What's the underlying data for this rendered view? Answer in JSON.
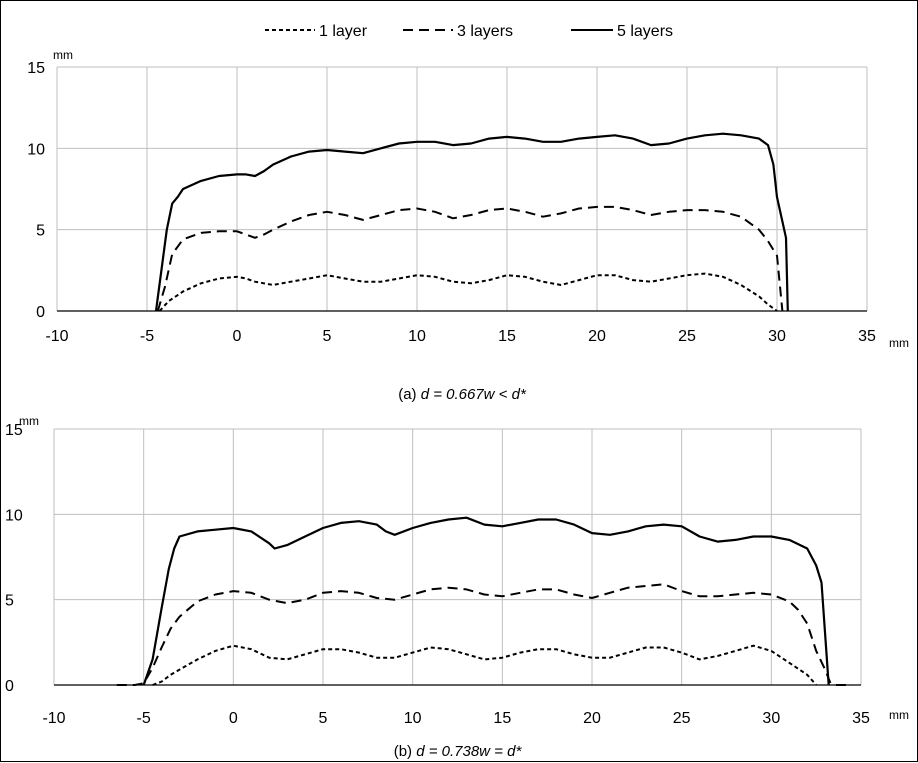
{
  "legend": [
    {
      "label": "1 layer",
      "dash": "4 3"
    },
    {
      "label": "3 layers",
      "dash": "10 6"
    },
    {
      "label": "5 layers",
      "dash": ""
    }
  ],
  "chart_data": [
    {
      "type": "line",
      "caption": {
        "prefix": "(a) ",
        "italic": "d = 0.667w < d*"
      },
      "xlim": [
        -10,
        35
      ],
      "ylim": [
        0,
        15
      ],
      "x_ticks": [
        -10,
        -5,
        0,
        5,
        10,
        15,
        20,
        25,
        30,
        35
      ],
      "y_ticks": [
        0,
        5,
        10,
        15
      ],
      "x_unit": "mm",
      "y_unit": "mm",
      "grid": true,
      "legend_position": "top",
      "series": [
        {
          "name": "1 layer",
          "x": [
            -4.3,
            -3.8,
            -3,
            -2,
            -1,
            0,
            0.5,
            1,
            2,
            3,
            4,
            5,
            6,
            7,
            8,
            9,
            10,
            11,
            12,
            13,
            14,
            15,
            16,
            17,
            18,
            19,
            20,
            21,
            22,
            23,
            24,
            25,
            26,
            27,
            28,
            29,
            29.5,
            30
          ],
          "y": [
            0,
            0.6,
            1.2,
            1.7,
            2.0,
            2.1,
            2.0,
            1.8,
            1.6,
            1.8,
            2.0,
            2.2,
            2.0,
            1.8,
            1.8,
            2.0,
            2.2,
            2.1,
            1.8,
            1.7,
            1.9,
            2.2,
            2.1,
            1.8,
            1.6,
            1.9,
            2.2,
            2.2,
            1.9,
            1.8,
            2.0,
            2.2,
            2.3,
            2.1,
            1.6,
            0.9,
            0.4,
            0
          ]
        },
        {
          "name": "3 layers",
          "x": [
            -4.4,
            -4,
            -3.6,
            -3,
            -2,
            -1,
            0,
            0.5,
            1,
            1.5,
            2,
            3,
            4,
            5,
            6,
            7,
            8,
            9,
            10,
            11,
            12,
            13,
            14,
            15,
            16,
            17,
            18,
            19,
            20,
            21,
            22,
            23,
            24,
            25,
            26,
            27,
            28,
            29,
            29.5,
            30,
            30.3
          ],
          "y": [
            0,
            1.5,
            3.5,
            4.4,
            4.8,
            4.9,
            4.9,
            4.7,
            4.5,
            4.7,
            5.0,
            5.5,
            5.9,
            6.1,
            5.9,
            5.6,
            5.9,
            6.2,
            6.3,
            6.1,
            5.7,
            5.9,
            6.2,
            6.3,
            6.1,
            5.8,
            6.0,
            6.3,
            6.4,
            6.4,
            6.2,
            5.9,
            6.1,
            6.2,
            6.2,
            6.1,
            5.8,
            5.0,
            4.3,
            3.4,
            0
          ]
        },
        {
          "name": "5 layers",
          "x": [
            -4.5,
            -4.2,
            -3.9,
            -3.6,
            -3.3,
            -3,
            -2,
            -1,
            0,
            0.5,
            1,
            1.5,
            2,
            3,
            4,
            5,
            6,
            7,
            8,
            9,
            10,
            11,
            12,
            13,
            14,
            15,
            16,
            17,
            18,
            19,
            20,
            21,
            22,
            23,
            24,
            25,
            26,
            27,
            28,
            29,
            29.5,
            29.8,
            30,
            30.3,
            30.5,
            30.6
          ],
          "y": [
            0,
            2.5,
            5.0,
            6.6,
            7.0,
            7.5,
            8.0,
            8.3,
            8.4,
            8.4,
            8.3,
            8.6,
            9.0,
            9.5,
            9.8,
            9.9,
            9.8,
            9.7,
            10.0,
            10.3,
            10.4,
            10.4,
            10.2,
            10.3,
            10.6,
            10.7,
            10.6,
            10.4,
            10.4,
            10.6,
            10.7,
            10.8,
            10.6,
            10.2,
            10.3,
            10.6,
            10.8,
            10.9,
            10.8,
            10.6,
            10.2,
            9.0,
            7.0,
            5.5,
            4.5,
            0
          ]
        }
      ]
    },
    {
      "type": "line",
      "caption": {
        "prefix": "(b) ",
        "italic": "d = 0.738w = d*"
      },
      "xlim": [
        -10,
        35
      ],
      "ylim": [
        0,
        15
      ],
      "x_ticks": [
        -10,
        -5,
        0,
        5,
        10,
        15,
        20,
        25,
        30,
        35
      ],
      "y_ticks": [
        0,
        5,
        10,
        15
      ],
      "x_unit": "mm",
      "y_unit": "mm",
      "grid": true,
      "series": [
        {
          "name": "1 layer",
          "x": [
            -4.5,
            -4,
            -3.5,
            -3,
            -2,
            -1,
            0,
            1,
            2,
            3,
            4,
            5,
            6,
            7,
            8,
            9,
            10,
            11,
            12,
            13,
            14,
            15,
            16,
            17,
            18,
            19,
            20,
            21,
            22,
            23,
            24,
            25,
            26,
            27,
            28,
            29,
            30,
            31,
            32,
            32.5
          ],
          "y": [
            0,
            0.2,
            0.6,
            0.9,
            1.5,
            2.0,
            2.3,
            2.1,
            1.6,
            1.5,
            1.8,
            2.1,
            2.1,
            1.9,
            1.6,
            1.6,
            1.9,
            2.2,
            2.1,
            1.8,
            1.5,
            1.6,
            1.9,
            2.1,
            2.1,
            1.8,
            1.6,
            1.6,
            1.9,
            2.2,
            2.2,
            1.9,
            1.5,
            1.7,
            2.0,
            2.3,
            2.0,
            1.3,
            0.6,
            0
          ]
        },
        {
          "name": "3 layers",
          "x": [
            -6.5,
            -5.5,
            -5,
            -4.5,
            -4,
            -3.5,
            -3,
            -2,
            -1,
            0,
            1,
            2,
            3,
            4,
            5,
            6,
            7,
            8,
            9,
            10,
            11,
            12,
            13,
            14,
            15,
            16,
            17,
            18,
            19,
            20,
            21,
            22,
            23,
            24,
            25,
            26,
            27,
            28,
            29,
            30,
            31,
            31.5,
            32,
            32.5,
            33,
            33.3,
            33.6,
            34.5
          ],
          "y": [
            0,
            0,
            0.1,
            1.0,
            2.2,
            3.3,
            4.0,
            4.9,
            5.3,
            5.5,
            5.4,
            5.0,
            4.8,
            5.0,
            5.4,
            5.5,
            5.4,
            5.1,
            5.0,
            5.3,
            5.6,
            5.7,
            5.6,
            5.3,
            5.2,
            5.4,
            5.6,
            5.6,
            5.3,
            5.1,
            5.4,
            5.7,
            5.8,
            5.9,
            5.5,
            5.2,
            5.2,
            5.3,
            5.4,
            5.3,
            4.9,
            4.4,
            3.6,
            2.0,
            0.9,
            0.1,
            0,
            0
          ]
        },
        {
          "name": "5 layers",
          "x": [
            -5,
            -4.5,
            -4,
            -3.6,
            -3.3,
            -3,
            -2,
            -1,
            0,
            1,
            2,
            2.3,
            3,
            4,
            5,
            6,
            7,
            8,
            8.5,
            9,
            10,
            11,
            12,
            13,
            14,
            15,
            16,
            17,
            18,
            19,
            20,
            21,
            22,
            23,
            24,
            25,
            26,
            27,
            28,
            29,
            30,
            31,
            32,
            32.5,
            32.8,
            33,
            33.2
          ],
          "y": [
            0,
            1.5,
            4.5,
            6.8,
            8.0,
            8.7,
            9.0,
            9.1,
            9.2,
            9.0,
            8.3,
            8.0,
            8.2,
            8.7,
            9.2,
            9.5,
            9.6,
            9.4,
            9.0,
            8.8,
            9.2,
            9.5,
            9.7,
            9.8,
            9.4,
            9.3,
            9.5,
            9.7,
            9.7,
            9.4,
            8.9,
            8.8,
            9.0,
            9.3,
            9.4,
            9.3,
            8.7,
            8.4,
            8.5,
            8.7,
            8.7,
            8.5,
            8.0,
            7.0,
            6.0,
            3.0,
            0
          ]
        }
      ]
    }
  ]
}
